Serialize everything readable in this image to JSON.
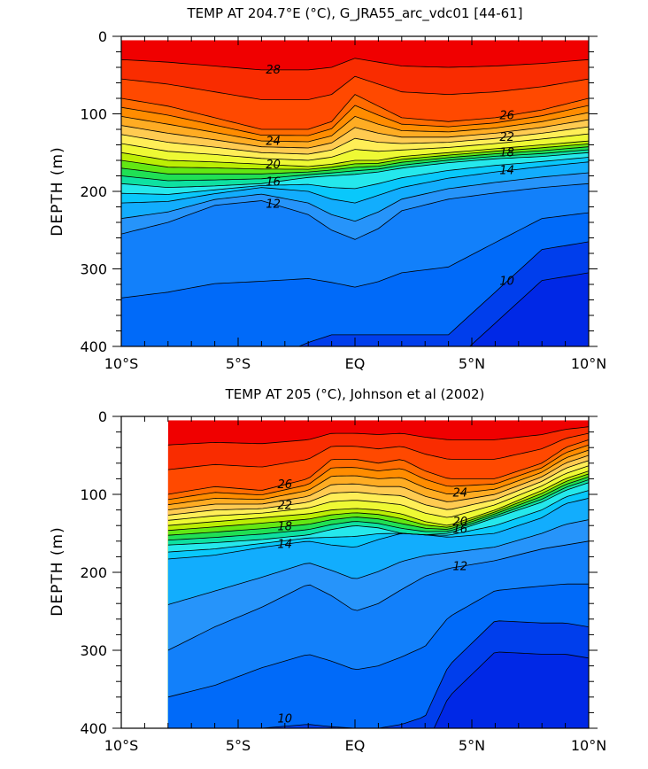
{
  "chart_data": [
    {
      "type": "heatmap",
      "title": "TEMP AT 204.7°E (°C), G_JRA55_arc_vdc01 [44-61]",
      "ylabel": "DEPTH (m)",
      "xlim": [
        -10,
        10
      ],
      "ylim": [
        0,
        400
      ],
      "x_ticks": [
        {
          "v": -10,
          "label": "10°S"
        },
        {
          "v": -5,
          "label": "5°S"
        },
        {
          "v": 0,
          "label": "EQ"
        },
        {
          "v": 5,
          "label": "5°N"
        },
        {
          "v": 10,
          "label": "10°N"
        }
      ],
      "y_ticks": [
        {
          "v": 0,
          "label": "0"
        },
        {
          "v": 100,
          "label": "100"
        },
        {
          "v": 200,
          "label": "200"
        },
        {
          "v": 300,
          "label": "300"
        },
        {
          "v": 400,
          "label": "400"
        }
      ],
      "data_xmin": -10,
      "data_depth_top": 5,
      "levels_step": 1,
      "color_min": 9,
      "color_max": 29,
      "x": [
        -10,
        -8,
        -6,
        -4,
        -2,
        -1,
        0,
        1,
        2,
        4,
        6,
        8,
        10
      ],
      "isotherm_depths": {
        "26": [
          80,
          90,
          105,
          120,
          120,
          110,
          75,
          90,
          105,
          110,
          105,
          95,
          80
        ],
        "20": [
          150,
          160,
          162,
          165,
          168,
          165,
          160,
          160,
          155,
          150,
          145,
          140,
          135
        ],
        "16": [
          190,
          195,
          193,
          190,
          182,
          180,
          178,
          175,
          170,
          163,
          158,
          155,
          150
        ],
        "14": [
          215,
          213,
          203,
          195,
          200,
          210,
          215,
          205,
          195,
          183,
          175,
          168,
          162
        ],
        "12": [
          255,
          240,
          218,
          212,
          230,
          250,
          262,
          248,
          225,
          210,
          202,
          195,
          190
        ],
        "10": [
          420,
          420,
          420,
          420,
          395,
          385,
          385,
          385,
          385,
          385,
          330,
          275,
          265
        ]
      },
      "contour_labels": [
        "28",
        "26",
        "24",
        "22",
        "20",
        "18",
        "16",
        "14",
        "12",
        "10"
      ]
    },
    {
      "type": "heatmap",
      "title": "TEMP AT 205 (°C), Johnson et al (2002)",
      "ylabel": "DEPTH (m)",
      "xlim": [
        -10,
        10
      ],
      "ylim": [
        0,
        400
      ],
      "x_ticks": [
        {
          "v": -10,
          "label": "10°S"
        },
        {
          "v": -5,
          "label": "5°S"
        },
        {
          "v": 0,
          "label": "EQ"
        },
        {
          "v": 5,
          "label": "5°N"
        },
        {
          "v": 10,
          "label": "10°N"
        }
      ],
      "y_ticks": [
        {
          "v": 0,
          "label": "0"
        },
        {
          "v": 100,
          "label": "100"
        },
        {
          "v": 200,
          "label": "200"
        },
        {
          "v": 300,
          "label": "300"
        },
        {
          "v": 400,
          "label": "400"
        }
      ],
      "data_xmin": -8,
      "data_depth_top": 5,
      "levels_step": 1,
      "color_min": 9,
      "color_max": 29,
      "x": [
        -8,
        -6,
        -4,
        -2,
        -1,
        0,
        1,
        2,
        3,
        4,
        6,
        8,
        9,
        10
      ],
      "isotherm_depths": {
        "26": [
          100,
          90,
          95,
          80,
          55,
          55,
          60,
          55,
          70,
          80,
          80,
          60,
          40,
          30
        ],
        "20": [
          140,
          135,
          130,
          125,
          120,
          118,
          120,
          125,
          135,
          140,
          120,
          95,
          80,
          70
        ],
        "16": [
          165,
          162,
          158,
          152,
          145,
          140,
          143,
          150,
          152,
          150,
          130,
          110,
          95,
          85
        ],
        "14": [
          183,
          178,
          168,
          160,
          165,
          168,
          158,
          150,
          152,
          155,
          150,
          130,
          112,
          105
        ],
        "12": [
          300,
          270,
          245,
          215,
          230,
          250,
          240,
          222,
          205,
          195,
          185,
          170,
          165,
          160
        ],
        "10": [
          420,
          420,
          400,
          395,
          398,
          400,
          400,
          395,
          385,
          320,
          262,
          265,
          265,
          270
        ]
      },
      "contour_labels": [
        "26",
        "24",
        "22",
        "20",
        "18",
        "16",
        "14",
        "12",
        "10"
      ]
    }
  ]
}
